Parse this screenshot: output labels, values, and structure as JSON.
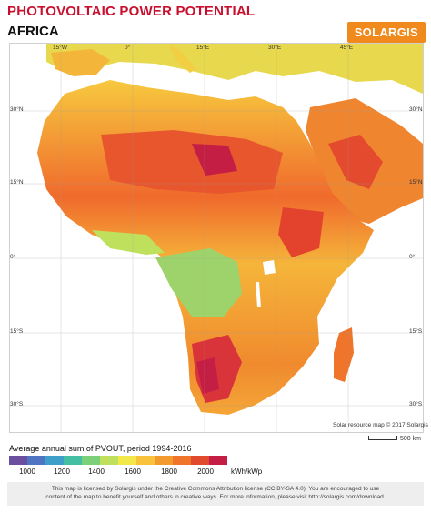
{
  "header": {
    "title": "PHOTOVOLTAIC POWER POTENTIAL",
    "subtitle": "AFRICA",
    "logo": "SOLARGIS",
    "title_color": "#c8102e",
    "logo_color": "#f08a1c"
  },
  "map": {
    "lat_labels": [
      "30°N",
      "15°N",
      "0°",
      "15°S",
      "30°S"
    ],
    "lon_labels": [
      "15°W",
      "0°",
      "15°E",
      "30°E",
      "45°E"
    ],
    "credit": "Solar resource map © 2017 Solargis",
    "scale_label": "500 km",
    "colors": {
      "sea": "#ffffff",
      "low": "#4cb9a8",
      "mid": "#f2e84a",
      "high": "#f26a2e",
      "very_high": "#c41e44"
    }
  },
  "legend": {
    "title": "Average annual sum of PVOUT, period 1994-2016",
    "ticks": [
      "1000",
      "1200",
      "1400",
      "1600",
      "1800",
      "2000"
    ],
    "unit": "kWh/kWp",
    "colors": [
      "#6a4fa0",
      "#4f74c2",
      "#3ea0c9",
      "#45bfa4",
      "#7bd17a",
      "#bfe05c",
      "#f2e84a",
      "#f8c23a",
      "#f39a2e",
      "#f0742a",
      "#e24a2e",
      "#c41e44"
    ]
  },
  "footer": {
    "line1": "This map is licensed by Solargis under the Creative Commons Attribution license (CC BY-SA 4.0). You are encouraged to use",
    "line2": "content of the map to benefit yourself and others in creative ways. For more information, please visit http://solargis.com/download."
  }
}
